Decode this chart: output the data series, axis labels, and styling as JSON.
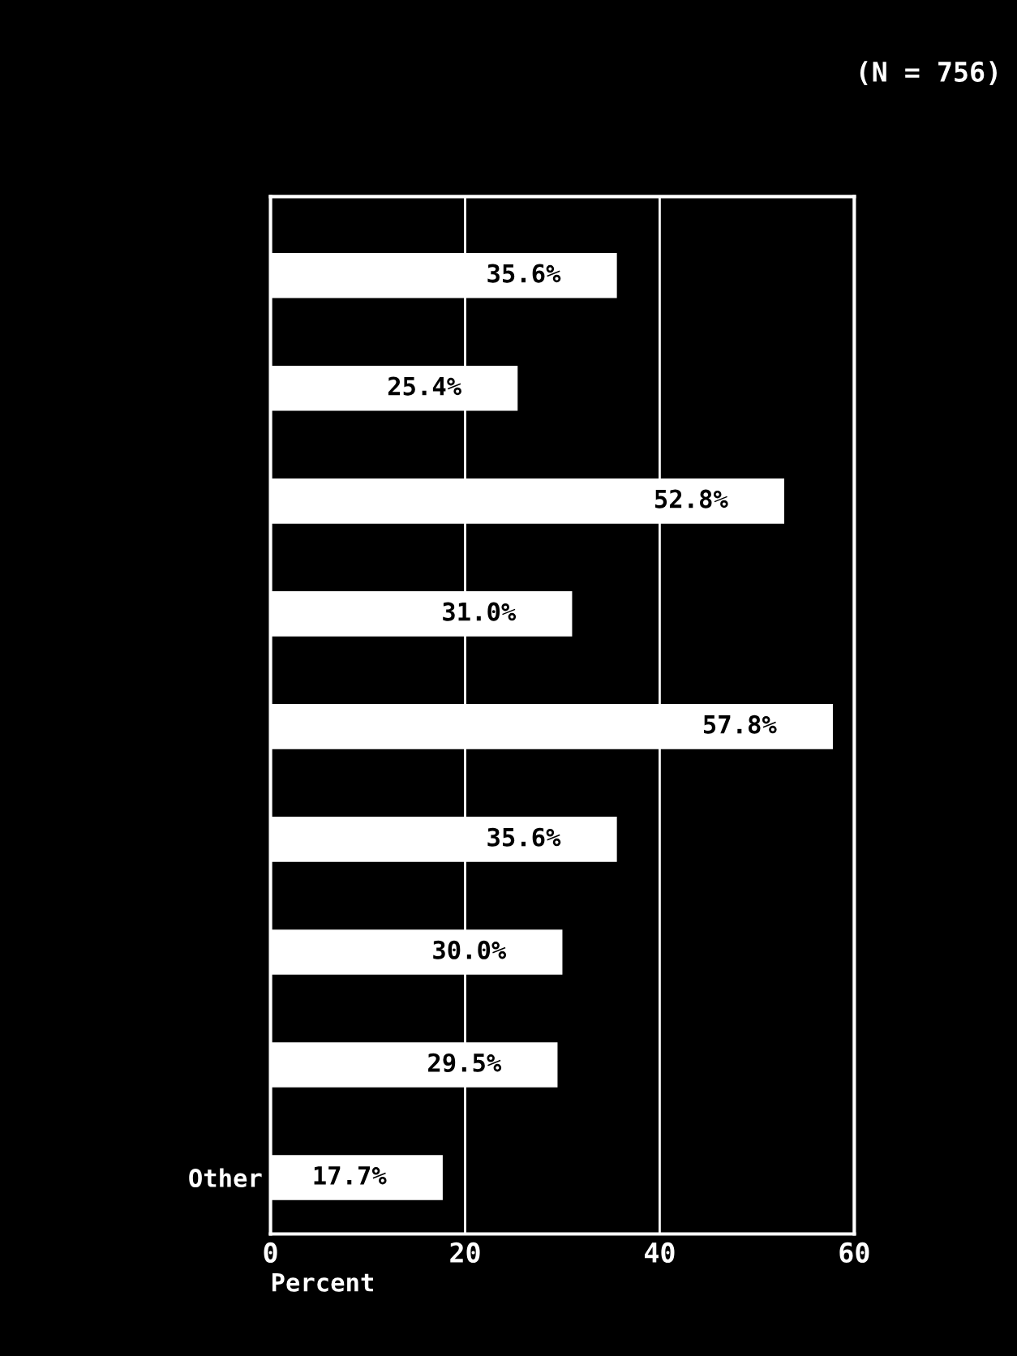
{
  "chart_data": {
    "type": "bar",
    "orientation": "horizontal",
    "xlabel": "Percent",
    "annotations": [
      "(N = 756)"
    ],
    "categories": [
      null,
      null,
      null,
      null,
      null,
      null,
      null,
      null,
      "Other"
    ],
    "values": [
      35.6,
      25.4,
      52.8,
      31.0,
      57.8,
      35.6,
      30.0,
      29.5,
      17.7
    ],
    "value_labels": [
      "35.6%",
      "25.4%",
      "52.8%",
      "31.0%",
      "57.8%",
      "35.6%",
      "30.0%",
      "29.5%",
      "17.7%"
    ],
    "color": "#ffffff",
    "xlim": [
      0,
      60
    ],
    "xticks": [
      0,
      20,
      40,
      60
    ],
    "grid": "x"
  }
}
